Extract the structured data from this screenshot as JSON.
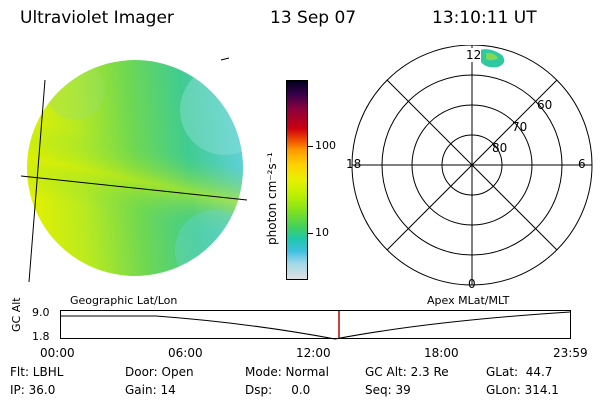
{
  "header": {
    "title": "Ultraviolet Imager",
    "date": "13 Sep 07",
    "time": "13:10:11 UT"
  },
  "colorbar": {
    "unit_label": "photon cm⁻²s⁻¹",
    "ticks": [
      "100",
      "10"
    ],
    "colors": [
      "#000020",
      "#3a004a",
      "#8a0040",
      "#cc0010",
      "#f05000",
      "#ff9a00",
      "#ffd000",
      "#e8f000",
      "#b8f000",
      "#80e020",
      "#40d060",
      "#20c8b0",
      "#40c0e0",
      "#a0d8e8",
      "#e0e0e0"
    ]
  },
  "polar_plot": {
    "mlt_labels": {
      "top": "12",
      "left": "18",
      "right": "6",
      "bottom": "0"
    },
    "mlat_labels": [
      "60",
      "70",
      "80"
    ]
  },
  "timeline": {
    "left_label": "Geographic Lat/Lon",
    "right_label": "Apex MLat/MLT",
    "axis_title": "GC Alt",
    "y_ticks": [
      "9.0",
      "1.8"
    ],
    "x_ticks": [
      "00:00",
      "06:00",
      "12:00",
      "18:00",
      "23:59"
    ],
    "marker_color": "#c00000"
  },
  "status": {
    "flt": "Flt: LBHL",
    "ip": "IP: 36.0",
    "door": "Door: Open",
    "gain": "Gain: 14",
    "mode": "Mode: Normal",
    "dsp": "Dsp:     0.0",
    "gcalt": "GC Alt: 2.3 Re",
    "seq": "Seq: 39",
    "glat": "GLat:  44.7",
    "glon": "GLon: 314.1"
  }
}
